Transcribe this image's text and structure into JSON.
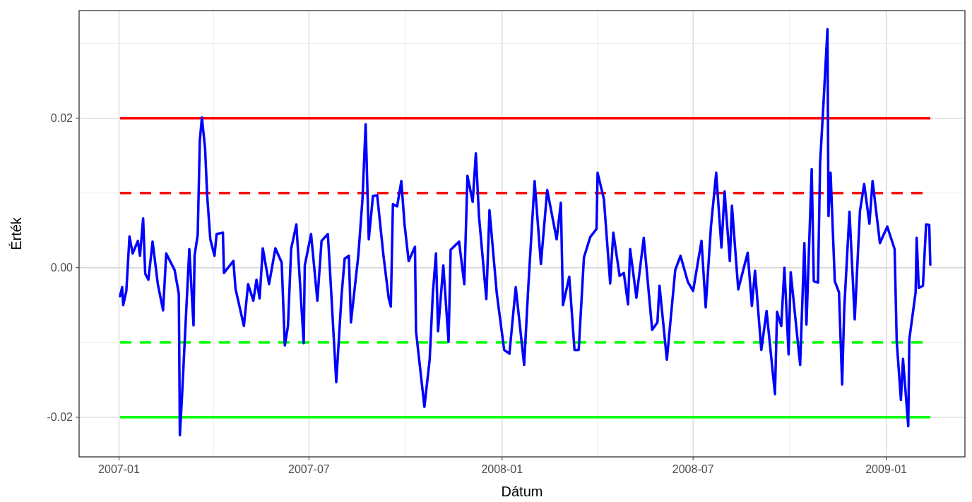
{
  "chart_data": {
    "type": "line",
    "xlabel": "Dátum",
    "ylabel": "Érték",
    "xlim": [
      "2006-11-24",
      "2009-03-17"
    ],
    "ylim": [
      -0.0253,
      0.0344
    ],
    "xticks": [
      {
        "value": "2007-01-01",
        "label": "2007-01"
      },
      {
        "value": "2007-04-01",
        "label": null
      },
      {
        "value": "2007-07-01",
        "label": "2007-07"
      },
      {
        "value": "2007-10-01",
        "label": null
      },
      {
        "value": "2008-01-01",
        "label": "2008-01"
      },
      {
        "value": "2008-04-01",
        "label": null
      },
      {
        "value": "2008-07-01",
        "label": "2008-07"
      },
      {
        "value": "2008-10-01",
        "label": null
      },
      {
        "value": "2009-01-01",
        "label": "2009-01"
      }
    ],
    "yticks": [
      {
        "value": -0.02,
        "label": "-0.02"
      },
      {
        "value": -0.01,
        "label": null
      },
      {
        "value": 0,
        "label": "0.00"
      },
      {
        "value": 0.01,
        "label": null
      },
      {
        "value": 0.02,
        "label": "0.02"
      },
      {
        "value": 0.03,
        "label": null
      }
    ],
    "grid": true,
    "line_style": "solid",
    "marker": "none",
    "ref_lines": [
      {
        "axis": "y",
        "value": 0.02,
        "label": null,
        "color": "#ff0000",
        "line_style": "solid"
      },
      {
        "axis": "y",
        "value": 0.01,
        "label": null,
        "color": "#ff0000",
        "line_style": "dashed"
      },
      {
        "axis": "y",
        "value": -0.01,
        "label": null,
        "color": "#00ff00",
        "line_style": "dashed"
      },
      {
        "axis": "y",
        "value": -0.02,
        "label": null,
        "color": "#00ff00",
        "line_style": "solid"
      }
    ],
    "x": [
      "2007-01-02",
      "2007-01-04",
      "2007-01-05",
      "2007-01-08",
      "2007-01-11",
      "2007-01-14",
      "2007-01-19",
      "2007-01-21",
      "2007-01-24",
      "2007-01-26",
      "2007-01-29",
      "2007-02-02",
      "2007-02-07",
      "2007-02-12",
      "2007-02-15",
      "2007-02-23",
      "2007-02-27",
      "2007-02-28",
      "2007-03-02",
      "2007-03-06",
      "2007-03-09",
      "2007-03-13",
      "2007-03-14",
      "2007-03-17",
      "2007-03-19",
      "2007-03-21",
      "2007-03-24",
      "2007-03-26",
      "2007-03-29",
      "2007-04-02",
      "2007-04-04",
      "2007-04-10",
      "2007-04-11",
      "2007-04-20",
      "2007-04-22",
      "2007-04-30",
      "2007-05-04",
      "2007-05-09",
      "2007-05-12",
      "2007-05-15",
      "2007-05-18",
      "2007-05-24",
      "2007-05-30",
      "2007-06-05",
      "2007-06-08",
      "2007-06-11",
      "2007-06-14",
      "2007-06-19",
      "2007-06-26",
      "2007-06-27",
      "2007-07-03",
      "2007-07-09",
      "2007-07-13",
      "2007-07-19",
      "2007-07-21",
      "2007-07-27",
      "2007-08-01",
      "2007-08-04",
      "2007-08-08",
      "2007-08-10",
      "2007-08-17",
      "2007-08-21",
      "2007-08-24",
      "2007-08-27",
      "2007-08-31",
      "2007-09-04",
      "2007-09-10",
      "2007-09-15",
      "2007-09-17",
      "2007-09-19",
      "2007-09-23",
      "2007-09-27",
      "2007-09-30",
      "2007-10-04",
      "2007-10-10",
      "2007-10-11",
      "2007-10-19",
      "2007-10-24",
      "2007-10-27",
      "2007-10-30",
      "2007-11-01",
      "2007-11-06",
      "2007-11-11",
      "2007-11-13",
      "2007-11-21",
      "2007-11-26",
      "2007-11-29",
      "2007-12-04",
      "2007-12-07",
      "2007-12-10",
      "2007-12-17",
      "2007-12-20",
      "2007-12-27",
      "2008-01-03",
      "2008-01-08",
      "2008-01-14",
      "2008-01-22",
      "2008-01-26",
      "2008-02-01",
      "2008-02-07",
      "2008-02-13",
      "2008-02-22",
      "2008-02-26",
      "2008-02-28",
      "2008-03-05",
      "2008-03-10",
      "2008-03-14",
      "2008-03-19",
      "2008-03-25",
      "2008-03-31",
      "2008-04-01",
      "2008-04-07",
      "2008-04-13",
      "2008-04-16",
      "2008-04-22",
      "2008-04-26",
      "2008-04-30",
      "2008-05-02",
      "2008-05-08",
      "2008-05-15",
      "2008-05-23",
      "2008-05-28",
      "2008-05-30",
      "2008-06-06",
      "2008-06-14",
      "2008-06-19",
      "2008-06-26",
      "2008-07-01",
      "2008-07-09",
      "2008-07-13",
      "2008-07-18",
      "2008-07-23",
      "2008-07-28",
      "2008-07-31",
      "2008-08-05",
      "2008-08-07",
      "2008-08-13",
      "2008-08-22",
      "2008-08-26",
      "2008-08-29",
      "2008-09-04",
      "2008-09-09",
      "2008-09-17",
      "2008-09-19",
      "2008-09-23",
      "2008-09-26",
      "2008-09-30",
      "2008-10-02",
      "2008-10-11",
      "2008-10-15",
      "2008-10-17",
      "2008-10-22",
      "2008-10-24",
      "2008-10-28",
      "2008-10-30",
      "2008-11-02",
      "2008-11-06",
      "2008-11-07",
      "2008-11-09",
      "2008-11-13",
      "2008-11-17",
      "2008-11-20",
      "2008-11-22",
      "2008-11-27",
      "2008-12-02",
      "2008-12-07",
      "2008-12-11",
      "2008-12-16",
      "2008-12-19",
      "2008-12-26",
      "2009-01-02",
      "2009-01-09",
      "2009-01-11",
      "2009-01-15",
      "2009-01-17",
      "2009-01-22",
      "2009-01-23",
      "2009-01-29",
      "2009-01-30",
      "2009-02-01",
      "2009-02-05",
      "2009-02-08",
      "2009-02-11",
      "2009-02-12"
    ],
    "series": [
      {
        "color": "#0000ff",
        "values": [
          -0.0038,
          -0.0026,
          -0.005,
          -0.0031,
          0.0042,
          0.0019,
          0.0036,
          0.0016,
          0.0066,
          -0.0008,
          -0.0016,
          0.0035,
          -0.0022,
          -0.0057,
          0.0019,
          -0.0003,
          -0.0035,
          -0.0224,
          -0.0173,
          -0.0059,
          0.0025,
          -0.0077,
          0.0016,
          0.0044,
          0.017,
          0.0201,
          0.016,
          0.0097,
          0.0038,
          0.0016,
          0.0045,
          0.0047,
          -0.0007,
          0.0009,
          -0.0028,
          -0.0078,
          -0.0022,
          -0.0044,
          -0.0016,
          -0.0041,
          0.0026,
          -0.0022,
          0.0026,
          0.0007,
          -0.0104,
          -0.0078,
          0.0025,
          0.0058,
          -0.0101,
          0.0003,
          0.0045,
          -0.0044,
          0.0036,
          0.0045,
          -0.0003,
          -0.0153,
          -0.0038,
          0.0012,
          0.0016,
          -0.0073,
          0.0016,
          0.0092,
          0.0192,
          0.0038,
          0.0096,
          0.0097,
          0.0016,
          -0.0041,
          -0.0052,
          0.0085,
          0.0082,
          0.0116,
          0.0059,
          0.0009,
          0.0028,
          -0.0085,
          -0.0186,
          -0.0123,
          -0.0035,
          0.0019,
          -0.0085,
          0.0003,
          -0.0099,
          0.0024,
          0.0035,
          -0.0022,
          0.0123,
          0.0088,
          0.0153,
          0.0069,
          -0.0042,
          0.0077,
          -0.0035,
          -0.011,
          -0.0115,
          -0.0026,
          -0.013,
          -0.0025,
          0.0116,
          0.0005,
          0.0104,
          0.0038,
          0.0087,
          -0.005,
          -0.0012,
          -0.011,
          -0.011,
          0.0014,
          0.0041,
          0.0052,
          0.0127,
          0.0092,
          -0.0021,
          0.0047,
          -0.0011,
          -0.0007,
          -0.0049,
          0.0025,
          -0.004,
          0.004,
          -0.0083,
          -0.0073,
          -0.0024,
          -0.0123,
          -0.0003,
          0.0016,
          -0.0019,
          -0.0031,
          0.0036,
          -0.0053,
          0.0055,
          0.0127,
          0.0027,
          0.0102,
          0.0009,
          0.0083,
          -0.0029,
          0.002,
          -0.0051,
          -0.0004,
          -0.011,
          -0.0058,
          -0.0169,
          -0.0059,
          -0.0078,
          0,
          -0.0116,
          -0.0006,
          -0.013,
          0.0033,
          -0.0076,
          0.0132,
          -0.0018,
          -0.002,
          0.014,
          0.0214,
          0.0319,
          0.0069,
          0.0127,
          -0.0018,
          -0.0033,
          -0.0156,
          -0.0055,
          0.0075,
          -0.0069,
          0.0076,
          0.0112,
          0.0059,
          0.0116,
          0.0033,
          0.0055,
          0.0025,
          -0.0098,
          -0.0177,
          -0.0122,
          -0.0212,
          -0.0096,
          -0.0033,
          0.004,
          -0.0027,
          -0.0024,
          0.0058,
          0.0057,
          0.0004
        ]
      }
    ]
  }
}
